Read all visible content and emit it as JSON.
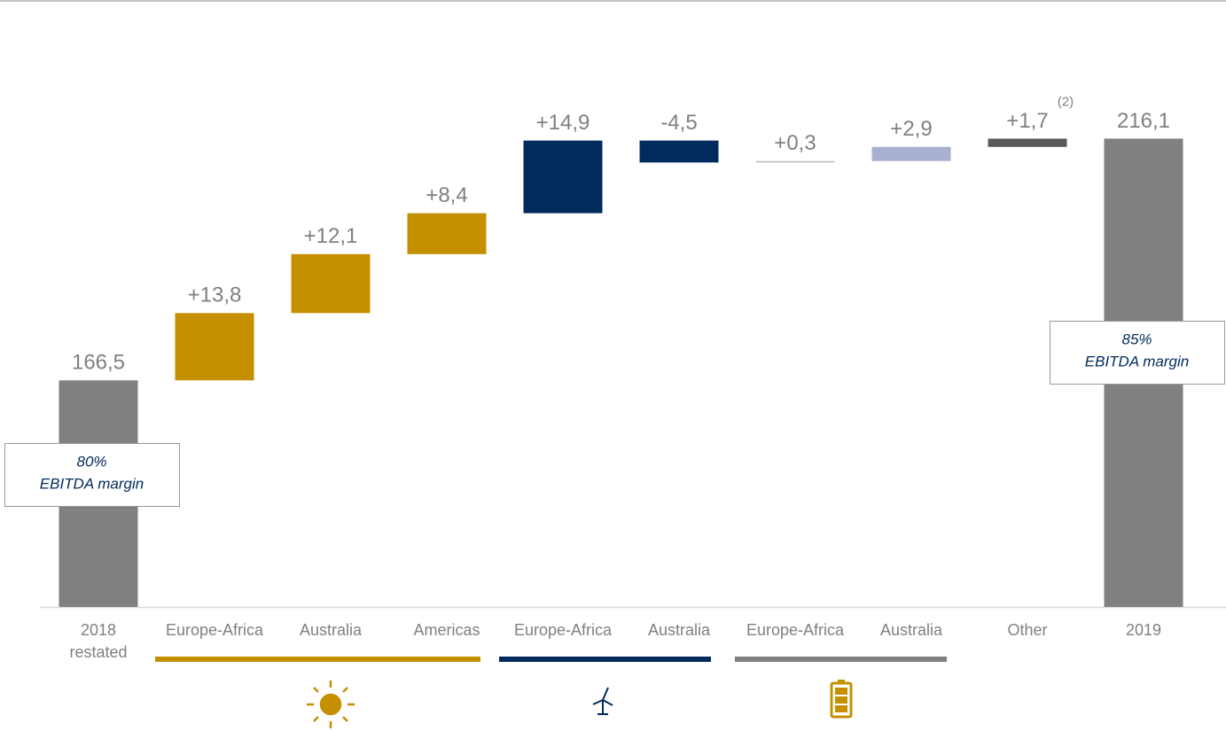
{
  "chart_data": {
    "type": "waterfall",
    "categories": [
      [
        "2018",
        "restated"
      ],
      "Europe-Africa",
      "Australia",
      "Americas",
      "Europe-Africa",
      "Australia",
      "Europe-Africa",
      "Australia",
      "Other",
      "2019"
    ],
    "values": [
      166.5,
      13.8,
      12.1,
      8.4,
      14.9,
      -4.5,
      0.3,
      2.9,
      1.7,
      216.1
    ],
    "value_labels": [
      "166,5",
      "+13,8",
      "+12,1",
      "+8,4",
      "+14,9",
      "-4,5",
      "+0,3",
      "+2,9",
      "+1,7",
      "216,1"
    ],
    "totals": [
      0,
      9
    ],
    "colors": [
      "#808080",
      "#c49000",
      "#c49000",
      "#c49000",
      "#002b5c",
      "#002b5c",
      "#bfbfbf",
      "#a9afd0",
      "#595959",
      "#808080"
    ],
    "footnote_marks": [
      {
        "index": 8,
        "text": "(2)"
      }
    ],
    "annotations": [
      {
        "index": 0,
        "lines": [
          "80%",
          "EBITDA margin"
        ]
      },
      {
        "index": 9,
        "lines": [
          "85%",
          "EBITDA margin"
        ]
      }
    ],
    "ylim": [
      120,
      220
    ]
  }
}
